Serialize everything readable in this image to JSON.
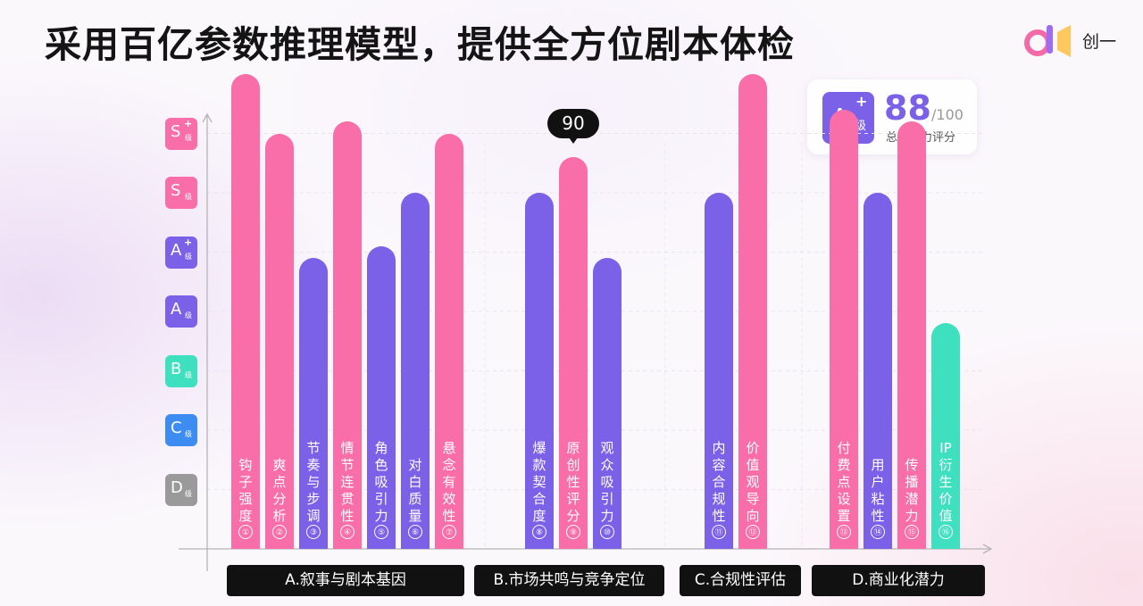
{
  "page": {
    "title": "采用百亿参数推理模型，提供全方位剧本体检"
  },
  "brand": {
    "name": "创一",
    "logo_icon": "chuangyi-logo-icon",
    "colors": [
      "#f36aa6",
      "#9f6bf0",
      "#ffc24a"
    ]
  },
  "score_card": {
    "grade_letter": "A",
    "grade_plus": "+",
    "grade_suffix": "级",
    "value": "88",
    "max": "/100",
    "caption": "总体潜力评分",
    "color": "#7b61e8"
  },
  "colors": {
    "S_grade": "#f96da8",
    "A_grade": "#7b61e8",
    "B_grade": "#3fe0c0",
    "C_grade": "#3d8cf2",
    "D_grade": "#9a9a9a"
  },
  "chart_data": {
    "type": "bar",
    "y_scale": {
      "ticks": [
        {
          "letter": "D",
          "plus": "",
          "suffix": "级",
          "color": "#9a9a9a"
        },
        {
          "letter": "C",
          "plus": "",
          "suffix": "级",
          "color": "#3d8cf2"
        },
        {
          "letter": "B",
          "plus": "",
          "suffix": "级",
          "color": "#3fe0c0"
        },
        {
          "letter": "A",
          "plus": "",
          "suffix": "级",
          "color": "#7b61e8"
        },
        {
          "letter": "A",
          "plus": "+",
          "suffix": "级",
          "color": "#7b61e8"
        },
        {
          "letter": "S",
          "plus": "",
          "suffix": "级",
          "color": "#f96da8"
        },
        {
          "letter": "S",
          "plus": "+",
          "suffix": "级",
          "color": "#f96da8"
        }
      ],
      "min": 0,
      "max": 7
    },
    "grid": true,
    "groups": [
      {
        "label": "A.叙事与剧本基因",
        "items": [
          {
            "num": "①",
            "label": "钩子强度",
            "value": 7.0,
            "color": "#f96da8"
          },
          {
            "num": "②",
            "label": "爽点分析",
            "value": 6.0,
            "color": "#f96da8"
          },
          {
            "num": "③",
            "label": "节奏与步调",
            "value": 3.9,
            "color": "#7b61e8"
          },
          {
            "num": "④",
            "label": "情节连贯性",
            "value": 6.2,
            "color": "#f96da8"
          },
          {
            "num": "⑤",
            "label": "角色吸引力",
            "value": 4.1,
            "color": "#7b61e8"
          },
          {
            "num": "⑥",
            "label": "对白质量",
            "value": 5.0,
            "color": "#7b61e8"
          },
          {
            "num": "⑦",
            "label": "悬念有效性",
            "value": 6.0,
            "color": "#f96da8"
          }
        ]
      },
      {
        "label": "B.市场共鸣与竞争定位",
        "items": [
          {
            "num": "⑧",
            "label": "爆款契合度",
            "value": 5.0,
            "color": "#7b61e8"
          },
          {
            "num": "⑨",
            "label": "原创性评分",
            "value": 5.6,
            "color": "#f96da8",
            "callout": "90"
          },
          {
            "num": "⑩",
            "label": "观众吸引力",
            "value": 3.9,
            "color": "#7b61e8"
          }
        ]
      },
      {
        "label": "C.合规性评估",
        "items": [
          {
            "num": "⑪",
            "label": "内容合规性",
            "value": 5.0,
            "color": "#7b61e8"
          },
          {
            "num": "⑫",
            "label": "价值观导向",
            "value": 7.0,
            "color": "#f96da8"
          }
        ]
      },
      {
        "label": "D.商业化潜力",
        "items": [
          {
            "num": "⑬",
            "label": "付费点设置",
            "value": 6.4,
            "color": "#f96da8"
          },
          {
            "num": "⑭",
            "label": "用户粘性",
            "value": 5.0,
            "color": "#7b61e8"
          },
          {
            "num": "⑮",
            "label": "传播潜力",
            "value": 6.2,
            "color": "#f96da8"
          },
          {
            "num": "⑯",
            "label": "IP衍生价值",
            "value": 2.8,
            "color": "#3fe0c0"
          }
        ]
      }
    ]
  }
}
